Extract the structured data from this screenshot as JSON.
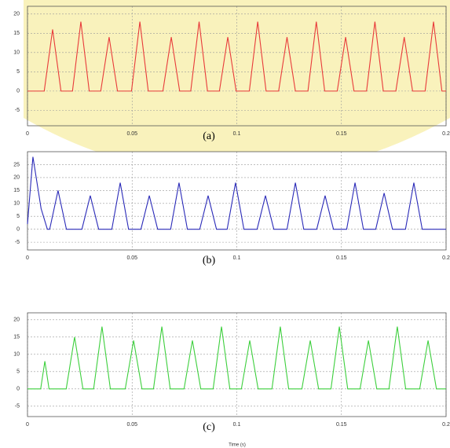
{
  "chart_data": [
    {
      "type": "line",
      "caption": "(a)",
      "color": "#e83a3a",
      "grid": true,
      "xlim": [
        0,
        0.2
      ],
      "xticks": [
        0,
        0.05,
        0.1,
        0.15,
        0.2
      ],
      "ylim": [
        -9,
        22
      ],
      "yticks": [
        -5,
        0,
        5,
        10,
        15,
        20
      ],
      "x": [
        0,
        0.008,
        0.012,
        0.016,
        0.0215,
        0.0255,
        0.0295,
        0.035,
        0.039,
        0.043,
        0.0497,
        0.0537,
        0.0577,
        0.0647,
        0.0687,
        0.0727,
        0.078,
        0.082,
        0.086,
        0.0917,
        0.0957,
        0.0997,
        0.106,
        0.11,
        0.114,
        0.12,
        0.124,
        0.128,
        0.134,
        0.138,
        0.142,
        0.148,
        0.152,
        0.156,
        0.162,
        0.166,
        0.17,
        0.176,
        0.18,
        0.184,
        0.19,
        0.194,
        0.198,
        0.2
      ],
      "values": [
        0,
        0,
        16,
        0,
        0,
        18,
        0,
        0,
        14,
        0,
        0,
        18,
        0,
        0,
        14,
        0,
        0,
        18,
        0,
        0,
        14,
        0,
        0,
        18,
        0,
        0,
        14,
        0,
        0,
        18,
        0,
        0,
        14,
        0,
        0,
        18,
        0,
        0,
        14,
        0,
        0,
        18,
        0,
        0
      ]
    },
    {
      "type": "line",
      "caption": "(b)",
      "color": "#2a2ab8",
      "grid": true,
      "xlim": [
        0,
        0.2
      ],
      "xticks": [
        0,
        0.05,
        0.1,
        0.15,
        0.2
      ],
      "ylim": [
        -8,
        30
      ],
      "yticks": [
        -5,
        0,
        5,
        10,
        15,
        20,
        25
      ],
      "x": [
        0,
        0.0026,
        0.0065,
        0.0095,
        0.0106,
        0.0146,
        0.0186,
        0.026,
        0.03,
        0.034,
        0.0403,
        0.0443,
        0.0483,
        0.0542,
        0.0582,
        0.0622,
        0.0684,
        0.0724,
        0.0764,
        0.0823,
        0.0863,
        0.0903,
        0.0954,
        0.0994,
        0.1034,
        0.1097,
        0.1137,
        0.1177,
        0.124,
        0.128,
        0.132,
        0.1382,
        0.1422,
        0.1462,
        0.1525,
        0.1565,
        0.1605,
        0.1664,
        0.1704,
        0.1744,
        0.1806,
        0.1846,
        0.1886,
        0.2
      ],
      "values": [
        2,
        28,
        8,
        0,
        0,
        15,
        0,
        0,
        13,
        0,
        0,
        18,
        0,
        0,
        13,
        0,
        0,
        18,
        0,
        0,
        13,
        0,
        0,
        18,
        0,
        0,
        13,
        0,
        0,
        18,
        0,
        0,
        13,
        0,
        0,
        18,
        0,
        0,
        14,
        0,
        0,
        18,
        0,
        0
      ]
    },
    {
      "type": "line",
      "caption": "(c)",
      "xlabel": "Time (s)",
      "color": "#3ccf3c",
      "grid": true,
      "xlim": [
        0,
        0.2
      ],
      "xticks": [
        0,
        0.05,
        0.1,
        0.15,
        0.2
      ],
      "ylim": [
        -8,
        22
      ],
      "yticks": [
        -5,
        0,
        5,
        10,
        15,
        20
      ],
      "x": [
        0,
        0.0063,
        0.0083,
        0.0103,
        0.0185,
        0.0225,
        0.0265,
        0.0316,
        0.0356,
        0.0396,
        0.0467,
        0.0507,
        0.0547,
        0.0602,
        0.0642,
        0.0682,
        0.0748,
        0.0788,
        0.0828,
        0.0887,
        0.0927,
        0.0967,
        0.1022,
        0.1062,
        0.1102,
        0.1168,
        0.1208,
        0.1248,
        0.1311,
        0.1351,
        0.1391,
        0.145,
        0.149,
        0.153,
        0.1589,
        0.1629,
        0.1669,
        0.1727,
        0.1767,
        0.1807,
        0.1874,
        0.1914,
        0.1954,
        0.2
      ],
      "values": [
        0,
        0,
        8,
        0,
        0,
        15,
        0,
        0,
        18,
        0,
        0,
        14,
        0,
        0,
        18,
        0,
        0,
        14,
        0,
        0,
        18,
        0,
        0,
        14,
        0,
        0,
        18,
        0,
        0,
        14,
        0,
        0,
        18,
        0,
        0,
        14,
        0,
        0,
        18,
        0,
        0,
        14,
        0,
        0
      ]
    }
  ]
}
